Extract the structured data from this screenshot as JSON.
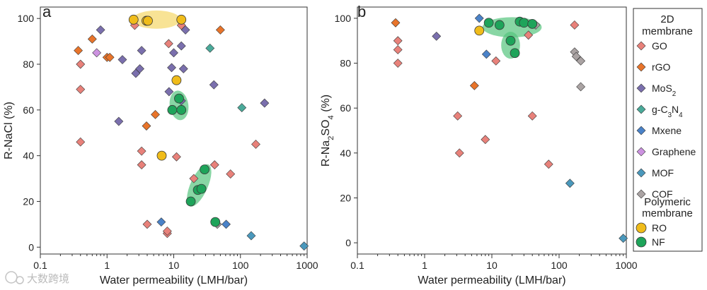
{
  "chart_data": [
    {
      "panel_label": "a",
      "type": "scatter",
      "xscale": "log",
      "xlabel": "Water permeability (LMH/bar)",
      "ylabel_parts": [
        "R-NaCl (%)"
      ],
      "xlim": [
        0.1,
        1000
      ],
      "ylim": [
        -3,
        105
      ],
      "xticks": [
        0.1,
        1,
        10,
        100,
        1000
      ],
      "xtick_labels": [
        "0.1",
        "1",
        "10",
        "100",
        "1000"
      ],
      "yticks": [
        0,
        20,
        40,
        60,
        80,
        100
      ],
      "ytick_labels": [
        "0",
        "20",
        "40",
        "60",
        "80",
        "100"
      ],
      "shaded_regions": [
        {
          "kind": "RO",
          "cx": 5.5,
          "cy": 99.5,
          "rx_decades": 0.36,
          "ry": 4.0,
          "angle": 0
        },
        {
          "kind": "NF",
          "cx": 12,
          "cy": 62,
          "rx_decades": 0.14,
          "ry": 6.5,
          "angle": -8
        },
        {
          "kind": "NF",
          "cx": 24,
          "cy": 27,
          "rx_decades": 0.13,
          "ry": 10,
          "angle": 24
        }
      ],
      "series": [
        {
          "name": "GO",
          "points": [
            [
              0.4,
              80
            ],
            [
              0.4,
              69
            ],
            [
              0.4,
              46
            ],
            [
              2.6,
              97
            ],
            [
              3.3,
              42
            ],
            [
              3.3,
              36
            ],
            [
              4,
              10
            ],
            [
              8,
              6
            ],
            [
              8,
              7
            ],
            [
              8.4,
              89
            ],
            [
              11,
              39.5
            ],
            [
              13,
              97
            ],
            [
              20,
              30
            ],
            [
              41,
              36
            ],
            [
              71,
              32
            ],
            [
              170,
              45
            ]
          ]
        },
        {
          "name": "rGO",
          "points": [
            [
              0.37,
              86
            ],
            [
              0.6,
              91
            ],
            [
              1.0,
              83
            ],
            [
              1.1,
              83
            ],
            [
              3.9,
              53
            ],
            [
              5.3,
              58
            ],
            [
              50,
              95
            ]
          ]
        },
        {
          "name": "MoS2",
          "points": [
            [
              0.8,
              95
            ],
            [
              1.5,
              55
            ],
            [
              1.7,
              82
            ],
            [
              2.7,
              76
            ],
            [
              3.1,
              78
            ],
            [
              3.3,
              86
            ],
            [
              8.5,
              68
            ],
            [
              9.3,
              78.5
            ],
            [
              10,
              85
            ],
            [
              13,
              88
            ],
            [
              13,
              64
            ],
            [
              14,
              78
            ],
            [
              15,
              95
            ],
            [
              40,
              71
            ],
            [
              230,
              63
            ]
          ]
        },
        {
          "name": "g-C3N4",
          "points": [
            [
              35,
              87
            ],
            [
              105,
              61
            ]
          ]
        },
        {
          "name": "Mxene",
          "points": [
            [
              6.5,
              11
            ],
            [
              61,
              10
            ]
          ]
        },
        {
          "name": "Graphene",
          "points": [
            [
              0.7,
              85
            ]
          ]
        },
        {
          "name": "MOF",
          "points": [
            [
              145,
              5
            ],
            [
              900,
              0.5
            ]
          ]
        },
        {
          "name": "COF",
          "points": [
            [
              45,
              10
            ]
          ]
        },
        {
          "name": "RO",
          "points": [
            [
              2.5,
              99.5
            ],
            [
              3.9,
              99
            ],
            [
              4.1,
              99
            ],
            [
              11,
              73
            ],
            [
              6.6,
              40
            ],
            [
              13,
              99.5
            ]
          ]
        },
        {
          "name": "NF",
          "points": [
            [
              9.5,
              60
            ],
            [
              13,
              60
            ],
            [
              12,
              65
            ],
            [
              18,
              20
            ],
            [
              23,
              25
            ],
            [
              26,
              25.5
            ],
            [
              29,
              34
            ],
            [
              42,
              11
            ]
          ]
        }
      ]
    },
    {
      "panel_label": "b",
      "type": "scatter",
      "xscale": "log",
      "xlabel": "Water permeability (LMH/bar)",
      "ylabel_parts": [
        "R-Na",
        "2",
        "SO",
        "4",
        " (%)"
      ],
      "xlim": [
        0.1,
        1000
      ],
      "ylim": [
        -5,
        105
      ],
      "xticks": [
        0.1,
        1,
        10,
        100,
        1000
      ],
      "xtick_labels": [
        "0.1",
        "1",
        "10",
        "100",
        "1000"
      ],
      "yticks": [
        0,
        20,
        40,
        60,
        80,
        100
      ],
      "ytick_labels": [
        "0",
        "20",
        "40",
        "60",
        "80",
        "100"
      ],
      "shaded_regions": [
        {
          "kind": "NF",
          "cx": 20,
          "cy": 96,
          "rx_decades": 0.44,
          "ry": 4.5,
          "angle": 0
        },
        {
          "kind": "NF",
          "cx": 19,
          "cy": 88,
          "rx_decades": 0.14,
          "ry": 6,
          "angle": 0
        }
      ],
      "series": [
        {
          "name": "GO",
          "points": [
            [
              0.4,
              90
            ],
            [
              0.4,
              86
            ],
            [
              0.4,
              80
            ],
            [
              3.1,
              56.5
            ],
            [
              3.3,
              40
            ],
            [
              8,
              46
            ],
            [
              11.5,
              81
            ],
            [
              35,
              92.5
            ],
            [
              40,
              56.5
            ],
            [
              70,
              35
            ],
            [
              170,
              97
            ]
          ]
        },
        {
          "name": "rGO",
          "points": [
            [
              0.37,
              98
            ],
            [
              5.5,
              70
            ]
          ]
        },
        {
          "name": "MoS2",
          "points": [
            [
              1.5,
              92
            ]
          ]
        },
        {
          "name": "g-C3N4",
          "points": []
        },
        {
          "name": "Mxene",
          "points": [
            [
              6.5,
              100
            ],
            [
              8.3,
              84
            ]
          ]
        },
        {
          "name": "Graphene",
          "points": []
        },
        {
          "name": "MOF",
          "points": [
            [
              145,
              26.5
            ],
            [
              900,
              2
            ]
          ]
        },
        {
          "name": "COF",
          "points": [
            [
              45,
              97
            ],
            [
              170,
              85
            ],
            [
              180,
              83
            ],
            [
              210,
              81
            ],
            [
              210,
              69.5
            ]
          ]
        },
        {
          "name": "RO",
          "points": [
            [
              6.5,
              94.5
            ]
          ]
        },
        {
          "name": "NF",
          "points": [
            [
              9,
              98
            ],
            [
              13,
              97
            ],
            [
              19,
              90
            ],
            [
              22,
              84.5
            ],
            [
              26,
              98.5
            ],
            [
              30,
              98
            ],
            [
              40,
              97.5
            ]
          ]
        }
      ]
    }
  ],
  "legend": {
    "heading_2d": [
      "2D",
      "membrane"
    ],
    "heading_poly": [
      "Polymeric",
      "membrane"
    ],
    "entries": [
      {
        "name": "GO",
        "label_parts": [
          "GO"
        ],
        "color": "#e8817a",
        "shape": "diamond"
      },
      {
        "name": "rGO",
        "label_parts": [
          "rGO"
        ],
        "color": "#e8742a",
        "shape": "diamond"
      },
      {
        "name": "MoS2",
        "label_parts": [
          "MoS",
          "2"
        ],
        "color": "#7a6fad",
        "shape": "diamond"
      },
      {
        "name": "g-C3N4",
        "label_parts": [
          "g-C",
          "3",
          "N",
          "4"
        ],
        "color": "#4aaa9a",
        "shape": "diamond"
      },
      {
        "name": "Mxene",
        "label_parts": [
          "Mxene"
        ],
        "color": "#4a82c8",
        "shape": "diamond"
      },
      {
        "name": "Graphene",
        "label_parts": [
          "Graphene"
        ],
        "color": "#cc92e0",
        "shape": "diamond"
      },
      {
        "name": "MOF",
        "label_parts": [
          "MOF"
        ],
        "color": "#4a98bc",
        "shape": "diamond"
      },
      {
        "name": "COF",
        "label_parts": [
          "COF"
        ],
        "color": "#aaa3a3",
        "shape": "diamond"
      },
      {
        "name": "RO",
        "label_parts": [
          "RO"
        ],
        "color": "#f0bc1a",
        "shape": "circle"
      },
      {
        "name": "NF",
        "label_parts": [
          "NF"
        ],
        "color": "#1ea45a",
        "shape": "circle"
      }
    ]
  },
  "region_colors": {
    "RO": "#f5d768",
    "NF": "#56c47e"
  },
  "watermark": {
    "icon": "tgc-logo-icon",
    "text": "大数跨境"
  }
}
